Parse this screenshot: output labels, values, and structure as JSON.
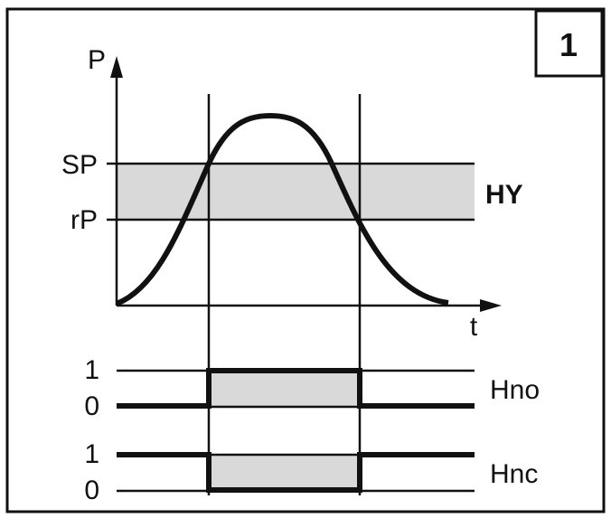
{
  "figure_number": "1",
  "axis": {
    "y_label": "P",
    "x_label": "t"
  },
  "thresholds": {
    "sp_label": "SP",
    "rp_label": "rP",
    "band_label": "HY"
  },
  "outputs": [
    {
      "name": "Hno",
      "level_high": "1",
      "level_low": "0"
    },
    {
      "name": "Hnc",
      "level_high": "1",
      "level_low": "0"
    }
  ],
  "colors": {
    "band": "#d9d9d9",
    "line": "#111111",
    "background": "#ffffff"
  }
}
